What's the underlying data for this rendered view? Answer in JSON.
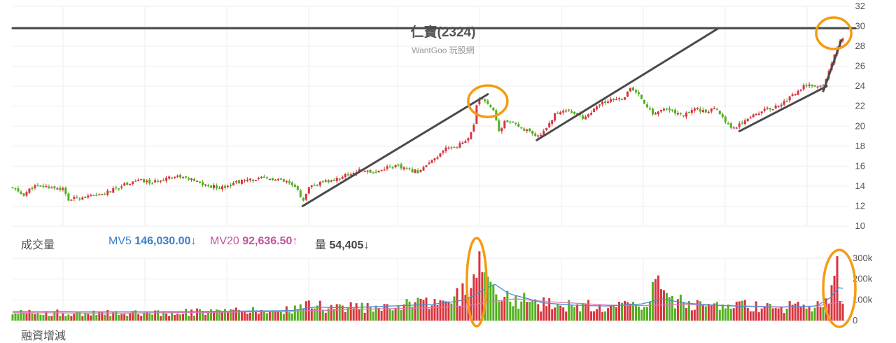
{
  "chart_data": {
    "type": "candlestick",
    "title": "仁寶(2324)",
    "subtitle": "WantGoo 玩股網",
    "price_axis": {
      "ylim": [
        10,
        32
      ],
      "ticks": [
        "10",
        "12",
        "14",
        "16",
        "18",
        "20",
        "22",
        "24",
        "26",
        "28",
        "30",
        "32"
      ],
      "position": "right"
    },
    "volume_axis": {
      "ylim": [
        0,
        300000
      ],
      "ticks": [
        "0",
        "100k",
        "200k",
        "300k"
      ],
      "position": "right"
    },
    "colors": {
      "up": "#d9333f",
      "down": "#53b01f",
      "mv5": "#4a8fd0",
      "mv20": "#d97bb0",
      "trendline": "#4a4a4a",
      "highlight": "#f39c12"
    },
    "price_path": [
      [
        0,
        13.8
      ],
      [
        15,
        13.1
      ],
      [
        30,
        14.0
      ],
      [
        55,
        13.9
      ],
      [
        72,
        13.7
      ],
      [
        80,
        12.6
      ],
      [
        95,
        12.9
      ],
      [
        120,
        13.0
      ],
      [
        140,
        13.5
      ],
      [
        160,
        14.2
      ],
      [
        180,
        14.6
      ],
      [
        200,
        14.3
      ],
      [
        220,
        14.9
      ],
      [
        240,
        15.0
      ],
      [
        260,
        14.5
      ],
      [
        280,
        14.0
      ],
      [
        300,
        13.9
      ],
      [
        320,
        14.4
      ],
      [
        340,
        14.6
      ],
      [
        360,
        14.8
      ],
      [
        380,
        14.6
      ],
      [
        395,
        14.3
      ],
      [
        410,
        13.5
      ],
      [
        415,
        12.3
      ],
      [
        425,
        13.9
      ],
      [
        440,
        14.3
      ],
      [
        460,
        14.6
      ],
      [
        480,
        15.2
      ],
      [
        500,
        15.6
      ],
      [
        520,
        15.4
      ],
      [
        535,
        15.9
      ],
      [
        550,
        16.0
      ],
      [
        565,
        15.6
      ],
      [
        580,
        15.5
      ],
      [
        595,
        16.2
      ],
      [
        610,
        17.0
      ],
      [
        620,
        17.8
      ],
      [
        635,
        18.0
      ],
      [
        650,
        18.6
      ],
      [
        660,
        20.0
      ],
      [
        665,
        22.5
      ],
      [
        672,
        22.8
      ],
      [
        685,
        22.0
      ],
      [
        690,
        21.5
      ],
      [
        695,
        19.2
      ],
      [
        705,
        20.6
      ],
      [
        720,
        20.1
      ],
      [
        735,
        19.6
      ],
      [
        750,
        18.8
      ],
      [
        760,
        19.5
      ],
      [
        775,
        21.1
      ],
      [
        790,
        21.7
      ],
      [
        805,
        21.3
      ],
      [
        815,
        20.8
      ],
      [
        830,
        21.5
      ],
      [
        845,
        22.4
      ],
      [
        860,
        22.6
      ],
      [
        875,
        22.9
      ],
      [
        885,
        23.8
      ],
      [
        900,
        22.8
      ],
      [
        915,
        21.2
      ],
      [
        930,
        21.7
      ],
      [
        945,
        21.5
      ],
      [
        960,
        21.0
      ],
      [
        975,
        21.9
      ],
      [
        990,
        21.4
      ],
      [
        1005,
        21.7
      ],
      [
        1015,
        21.0
      ],
      [
        1030,
        19.7
      ],
      [
        1045,
        20.5
      ],
      [
        1060,
        21.2
      ],
      [
        1075,
        21.6
      ],
      [
        1090,
        21.9
      ],
      [
        1105,
        22.5
      ],
      [
        1120,
        23.3
      ],
      [
        1135,
        24.2
      ],
      [
        1150,
        23.8
      ],
      [
        1160,
        24.0
      ],
      [
        1170,
        25.8
      ],
      [
        1180,
        28.0
      ],
      [
        1190,
        29.0
      ]
    ],
    "volume_path": [
      [
        0,
        40000
      ],
      [
        100,
        35000
      ],
      [
        200,
        40000
      ],
      [
        300,
        42000
      ],
      [
        400,
        50000
      ],
      [
        420,
        80000
      ],
      [
        450,
        60000
      ],
      [
        500,
        65000
      ],
      [
        550,
        75000
      ],
      [
        600,
        80000
      ],
      [
        640,
        120000
      ],
      [
        665,
        270000
      ],
      [
        680,
        150000
      ],
      [
        700,
        120000
      ],
      [
        750,
        80000
      ],
      [
        800,
        70000
      ],
      [
        850,
        70000
      ],
      [
        900,
        80000
      ],
      [
        920,
        160000
      ],
      [
        950,
        90000
      ],
      [
        1000,
        75000
      ],
      [
        1050,
        70000
      ],
      [
        1100,
        65000
      ],
      [
        1150,
        70000
      ],
      [
        1170,
        130000
      ],
      [
        1180,
        240000
      ],
      [
        1190,
        60000
      ]
    ],
    "mv5_path": [
      [
        0,
        45000
      ],
      [
        100,
        42000
      ],
      [
        200,
        42000
      ],
      [
        300,
        45000
      ],
      [
        400,
        48000
      ],
      [
        430,
        65000
      ],
      [
        480,
        62000
      ],
      [
        540,
        70000
      ],
      [
        600,
        78000
      ],
      [
        640,
        95000
      ],
      [
        660,
        120000
      ],
      [
        680,
        160000
      ],
      [
        690,
        175000
      ],
      [
        710,
        130000
      ],
      [
        760,
        85000
      ],
      [
        800,
        75000
      ],
      [
        850,
        70000
      ],
      [
        900,
        80000
      ],
      [
        930,
        105000
      ],
      [
        960,
        85000
      ],
      [
        1000,
        75000
      ],
      [
        1050,
        68000
      ],
      [
        1100,
        65000
      ],
      [
        1150,
        70000
      ],
      [
        1170,
        110000
      ],
      [
        1185,
        170000
      ],
      [
        1190,
        146030
      ]
    ],
    "mv20_path": [
      [
        0,
        38000
      ],
      [
        150,
        36000
      ],
      [
        300,
        40000
      ],
      [
        400,
        45000
      ],
      [
        500,
        55000
      ],
      [
        600,
        62000
      ],
      [
        650,
        70000
      ],
      [
        680,
        90000
      ],
      [
        720,
        105000
      ],
      [
        760,
        92000
      ],
      [
        800,
        85000
      ],
      [
        850,
        75000
      ],
      [
        900,
        72000
      ],
      [
        950,
        78000
      ],
      [
        1000,
        74000
      ],
      [
        1050,
        70000
      ],
      [
        1100,
        66000
      ],
      [
        1150,
        70000
      ],
      [
        1190,
        92636.5
      ]
    ],
    "trendlines": [
      [
        [
          0,
          29.8
        ],
        [
          1206,
          29.8
        ]
      ],
      [
        [
          415,
          12.0
        ],
        [
          680,
          23.2
        ]
      ],
      [
        [
          750,
          18.6
        ],
        [
          1010,
          29.8
        ]
      ],
      [
        [
          1040,
          19.5
        ],
        [
          1165,
          24.0
        ]
      ],
      [
        [
          1160,
          23.5
        ],
        [
          1186,
          28.6
        ]
      ]
    ],
    "highlight_circles": [
      [
        [
          680,
          22.5
        ],
        [
          28,
          15
        ]
      ],
      [
        [
          1175,
          29.3
        ],
        [
          25,
          15
        ]
      ],
      [
        [
          664,
          185000
        ],
        [
          14,
          63
        ]
      ],
      [
        [
          1183,
          155000
        ],
        [
          23,
          55
        ]
      ]
    ]
  },
  "volume_panel": {
    "label": "成交量",
    "mv5_label": "MV5",
    "mv5_value": "146,030.00↓",
    "mv20_label": "MV20",
    "mv20_value": "92,636.50↑",
    "vol_label": "量",
    "vol_value": "54,405↓"
  },
  "cut_label": "融資增減"
}
